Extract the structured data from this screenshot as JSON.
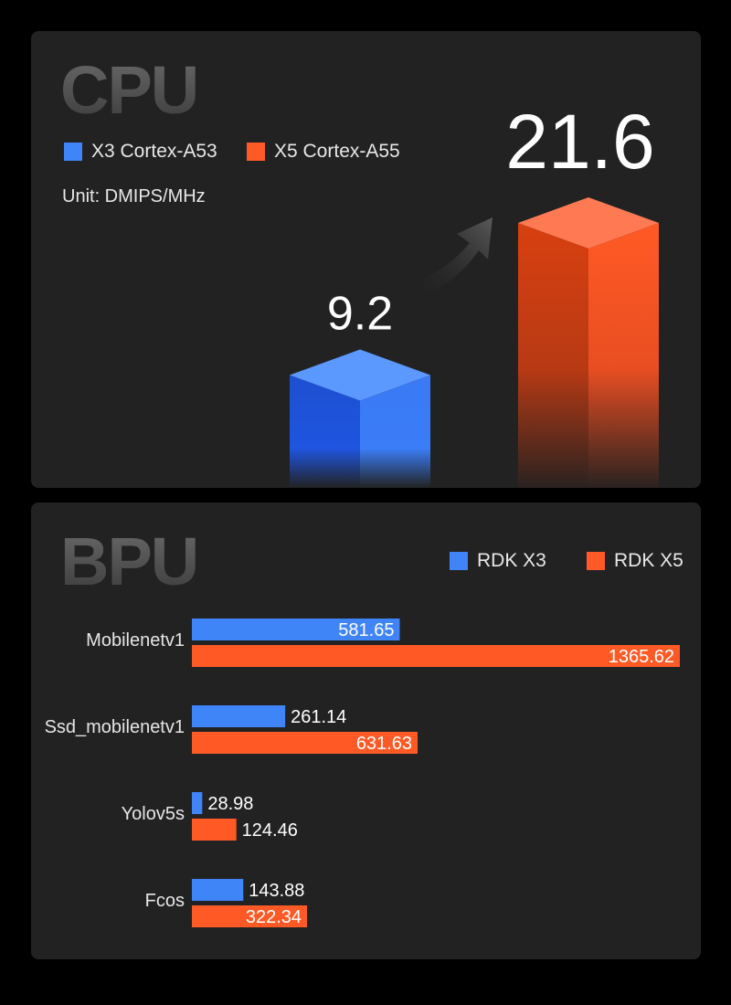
{
  "colors": {
    "x3": "#3f85f7",
    "x5": "#ff5a26",
    "panel": "#222222"
  },
  "cpu": {
    "title": "CPU",
    "legend": [
      "X3 Cortex-A53",
      "X5 Cortex-A55"
    ],
    "unit": "Unit: DMIPS/MHz"
  },
  "bpu": {
    "title": "BPU",
    "legend": [
      "RDK X3",
      "RDK X5"
    ]
  },
  "chart_data": [
    {
      "type": "bar",
      "title": "CPU",
      "ylabel": "Unit: DMIPS/MHz",
      "categories": [
        "X3 Cortex-A53",
        "X5 Cortex-A55"
      ],
      "values": [
        9.2,
        21.6
      ],
      "value_labels": [
        "9.2",
        "21.6"
      ]
    },
    {
      "type": "bar",
      "orientation": "horizontal",
      "title": "BPU",
      "categories": [
        "Mobilenetv1",
        "Ssd_mobilenetv1",
        "Yolov5s",
        "Fcos"
      ],
      "series": [
        {
          "name": "RDK X3",
          "values": [
            581.65,
            261.14,
            28.98,
            143.88
          ],
          "labels": [
            "581.65",
            "261.14",
            "28.98",
            "143.88"
          ]
        },
        {
          "name": "RDK X5",
          "values": [
            1365.62,
            631.63,
            124.46,
            322.34
          ],
          "labels": [
            "1365.62",
            "631.63",
            "124.46",
            "322.34"
          ]
        }
      ],
      "legend": "top-right"
    }
  ]
}
